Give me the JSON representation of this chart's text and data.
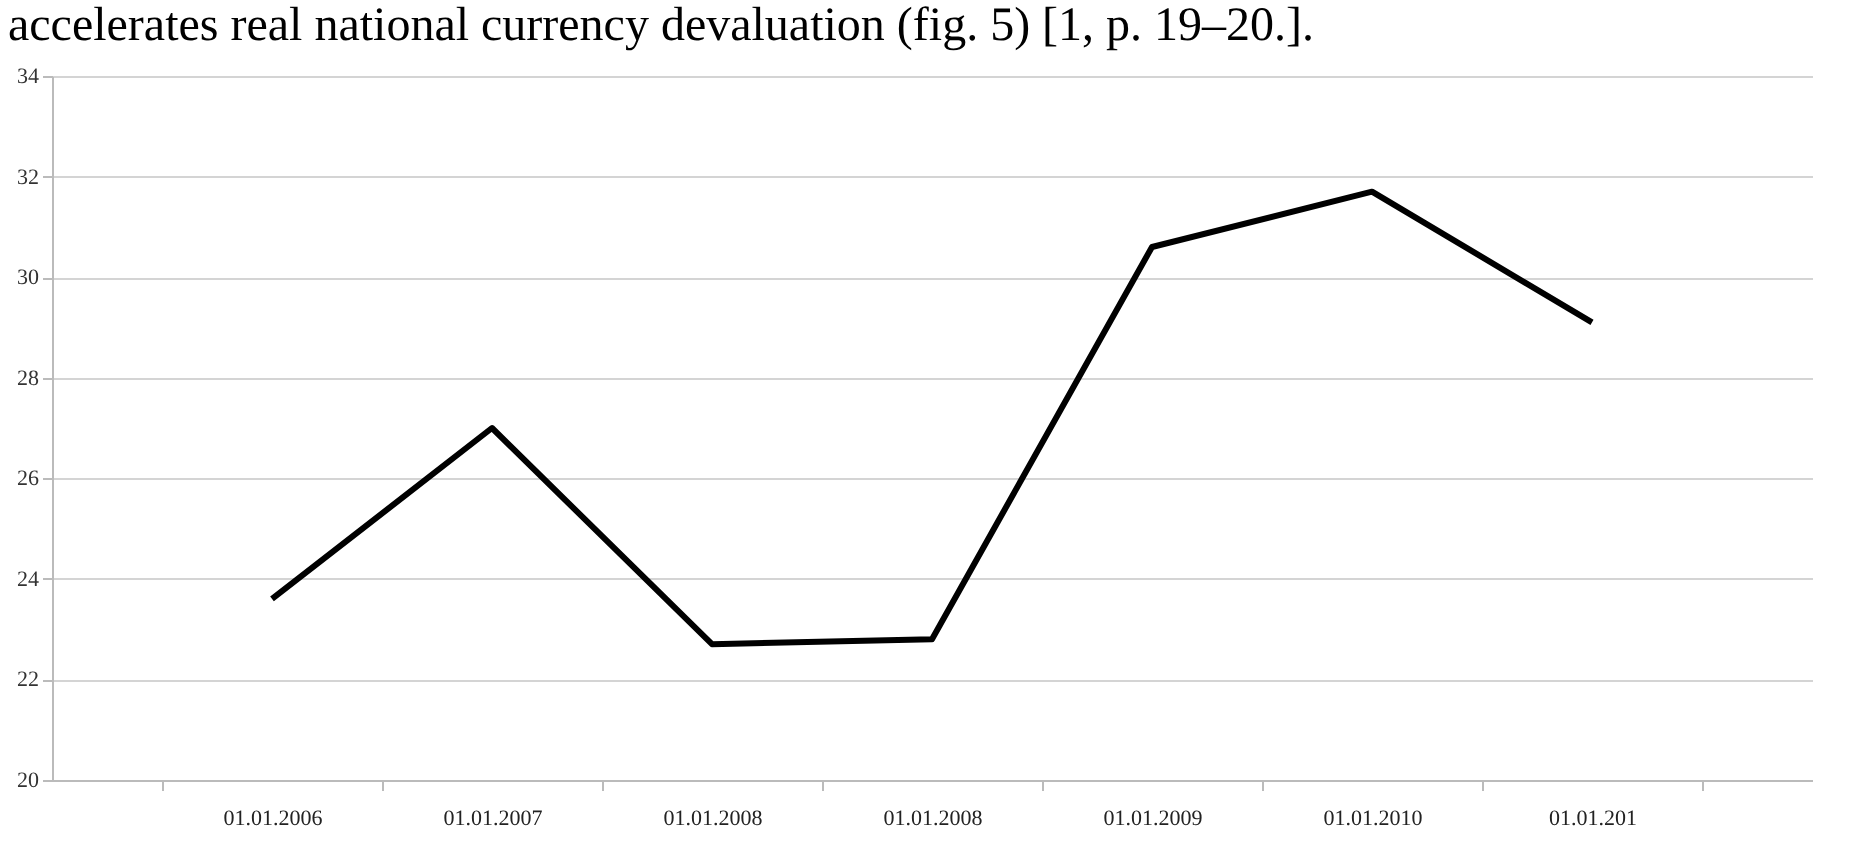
{
  "chart_data": {
    "type": "line",
    "annotations": [
      "accelerates real national currency devaluation (fig. 5) [1, p. 19–20.]."
    ],
    "categories": [
      "01.01.2006",
      "01.01.2007",
      "01.01.2008",
      "01.01.2008",
      "01.01.2009",
      "01.01.2010",
      "01.01.201"
    ],
    "series": [
      {
        "color": "#000000",
        "values": [
          23.6,
          27.0,
          22.7,
          22.8,
          30.6,
          31.7,
          29.1
        ]
      }
    ],
    "ylim": [
      20,
      34
    ],
    "yticks": [
      20,
      22,
      24,
      26,
      28,
      30,
      32,
      34
    ],
    "grid": "y",
    "legend": false,
    "marker": "none",
    "line_style": "solid"
  }
}
